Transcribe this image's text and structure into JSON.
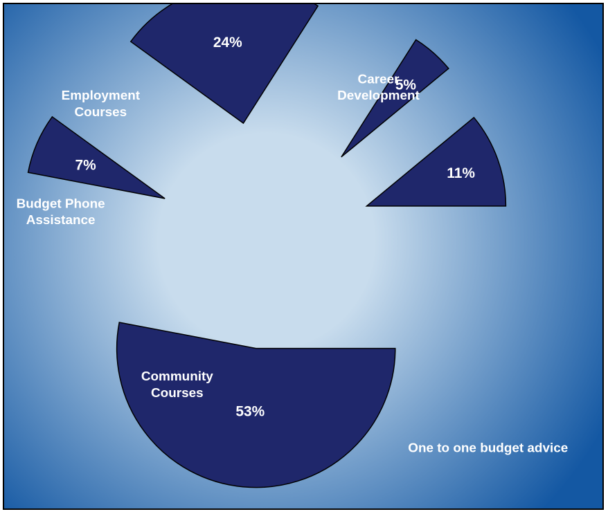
{
  "chart_data": {
    "type": "pie",
    "title": "",
    "start_angle_deg": 90,
    "direction": "clockwise",
    "exploded": true,
    "slices": [
      {
        "label": "One to one budget advice",
        "value": 53,
        "value_label": "53%"
      },
      {
        "label": "Community Courses",
        "value": 7,
        "value_label": "7%"
      },
      {
        "label": "Budget Phone Assistance",
        "value": 24,
        "value_label": "24%"
      },
      {
        "label": "Employment Courses",
        "value": 5,
        "value_label": "5%"
      },
      {
        "label": "Career Development",
        "value": 11,
        "value_label": "11%"
      }
    ]
  },
  "colors": {
    "slice_fill": "#1f276b",
    "slice_stroke": "#000000",
    "background_center": "#c8dced",
    "background_edge": "#1458a3",
    "text": "#ffffff"
  }
}
